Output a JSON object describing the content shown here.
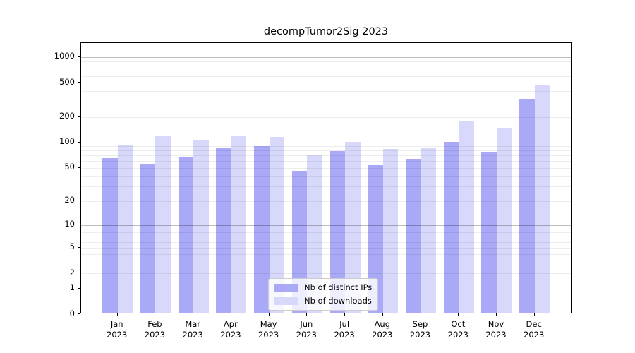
{
  "chart_data": {
    "type": "bar",
    "title": "decompTumor2Sig 2023",
    "categories": [
      "Jan",
      "Feb",
      "Mar",
      "Apr",
      "May",
      "Jun",
      "Jul",
      "Aug",
      "Sep",
      "Oct",
      "Nov",
      "Dec"
    ],
    "category_year": "2023",
    "series": [
      {
        "name": "Nb of distinct IPs",
        "color": "#a9a9f7",
        "values": [
          65,
          56,
          66,
          85,
          90,
          46,
          79,
          54,
          64,
          101,
          78,
          325
        ]
      },
      {
        "name": "Nb of downloads",
        "color": "#d8d8fa",
        "values": [
          94,
          118,
          107,
          120,
          116,
          70,
          102,
          84,
          88,
          180,
          148,
          480
        ]
      }
    ],
    "y_scale": "log1p",
    "y_ticks": [
      0,
      1,
      2,
      5,
      10,
      20,
      50,
      100,
      200,
      500,
      1000
    ],
    "ylim": [
      0,
      1460
    ],
    "xlabel": "",
    "ylabel": "",
    "grid": "both",
    "legend_position": "lower center"
  }
}
